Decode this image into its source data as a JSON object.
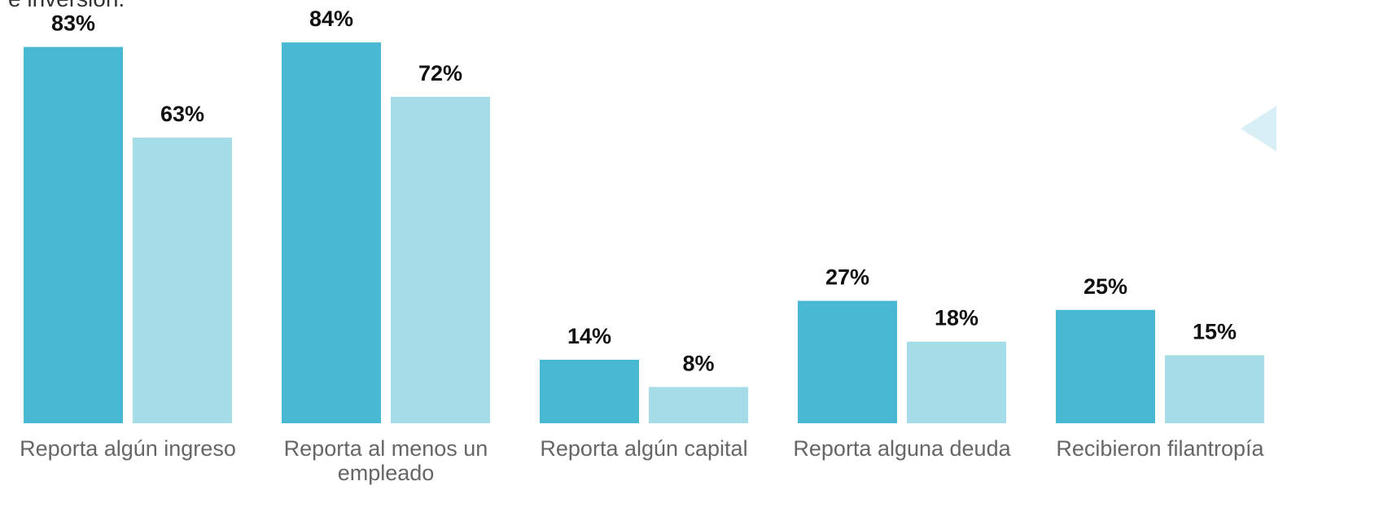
{
  "chart_data": {
    "type": "bar",
    "title": "e inversión.",
    "categories": [
      "Reporta algún ingreso",
      "Reporta al menos un empleado",
      "Reporta algún capital",
      "Reporta alguna deuda",
      "Recibieron filantropía"
    ],
    "series": [
      {
        "color": "#49b8d3",
        "values": [
          83,
          84,
          14,
          27,
          25
        ],
        "value_labels": [
          "83%",
          "84%",
          "14%",
          "27%",
          "25%"
        ]
      },
      {
        "color": "#a4dde8",
        "values": [
          63,
          72,
          8,
          18,
          15
        ],
        "value_labels": [
          "63%",
          "72%",
          "8%",
          "18%",
          "15%"
        ]
      }
    ],
    "ylim": [
      0,
      100
    ]
  }
}
